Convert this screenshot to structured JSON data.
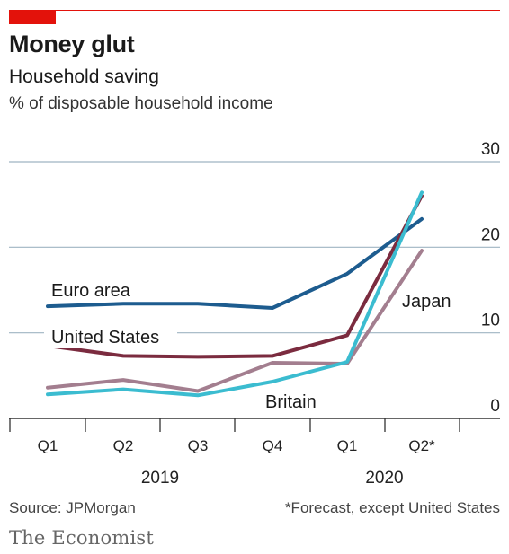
{
  "header": {
    "title": "Money glut",
    "subtitle": "Household saving",
    "units": "% of disposable household income"
  },
  "footer": {
    "source": "Source: JPMorgan",
    "footnote": "*Forecast, except United States",
    "brand": "The Economist"
  },
  "colors": {
    "accent": "#e3120b",
    "euro_area": "#1d5c8f",
    "united_states": "#7b2b3f",
    "japan": "#a37e8f",
    "britain": "#3bbcd0",
    "gridline": "#9fb4c2",
    "axis": "#333333"
  },
  "chart_data": {
    "type": "line",
    "categories": [
      "Q1",
      "Q2",
      "Q3",
      "Q4",
      "Q1",
      "Q2*"
    ],
    "years": [
      {
        "label": "2019",
        "start": 0,
        "end": 3
      },
      {
        "label": "2020",
        "start": 4,
        "end": 5
      }
    ],
    "ylim": [
      0,
      30
    ],
    "yticks": [
      "0",
      "10",
      "20",
      "30"
    ],
    "yaxis_side": "right",
    "grid": true,
    "legend": "inline labels",
    "series": [
      {
        "name": "Euro area",
        "key": "euro_area",
        "values": [
          13.1,
          13.4,
          13.4,
          12.9,
          16.9,
          23.3
        ]
      },
      {
        "name": "United States",
        "key": "united_states",
        "values": [
          8.5,
          7.3,
          7.2,
          7.3,
          9.7,
          26.0
        ]
      },
      {
        "name": "Japan",
        "key": "japan",
        "values": [
          3.6,
          4.5,
          3.2,
          6.5,
          6.4,
          19.6
        ]
      },
      {
        "name": "Britain",
        "key": "britain",
        "values": [
          2.8,
          3.4,
          2.7,
          4.3,
          6.6,
          26.4
        ]
      }
    ]
  }
}
